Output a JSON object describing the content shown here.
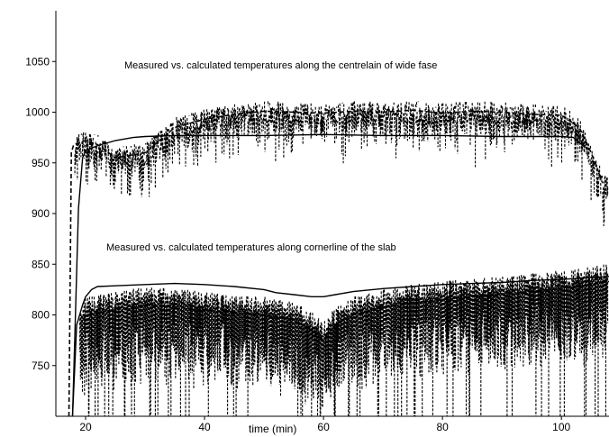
{
  "chart_data": {
    "type": "line",
    "title": "",
    "xlabel": "time (min)",
    "ylabel": "",
    "xlim": [
      15,
      108
    ],
    "ylim": [
      700,
      1100
    ],
    "grid": false,
    "x_ticks": [
      20,
      40,
      60,
      80,
      100
    ],
    "y_ticks": [
      750,
      800,
      850,
      900,
      950,
      1000,
      1050
    ],
    "annotations": [
      "Measured vs. calculated temperatures along the centrelain of wide fase",
      "Measured vs. calculated temperatures along cornerline of the slab"
    ],
    "series": [
      {
        "style": "solid",
        "x": [
          17.8,
          18.2,
          18.8,
          19.5,
          20,
          22,
          25,
          28,
          30,
          35,
          40,
          50,
          60,
          70,
          80,
          90,
          100,
          102,
          103,
          104
        ],
        "y": [
          700,
          780,
          905,
          955,
          962,
          967,
          972,
          975,
          976,
          977,
          977,
          977,
          978,
          977,
          977,
          976,
          976,
          975,
          970,
          966
        ]
      },
      {
        "style": "dashed",
        "x": [
          17.2,
          17.6,
          18,
          19,
          20,
          22,
          25,
          30,
          35,
          40,
          45,
          50,
          55,
          60,
          65,
          70,
          75,
          80,
          85,
          90,
          95,
          100,
          103,
          105,
          107
        ],
        "y": [
          700,
          960,
          968,
          970,
          972,
          968,
          955,
          960,
          985,
          993,
          998,
          1001,
          1000,
          999,
          1001,
          1000,
          1002,
          999,
          1001,
          1000,
          998,
          997,
          985,
          960,
          930
        ]
      },
      {
        "style": "solid",
        "x": [
          17.8,
          18.5,
          19.5,
          20,
          21,
          22,
          30,
          35,
          40,
          45,
          50,
          52,
          55,
          58,
          60,
          62,
          65,
          70,
          75,
          80,
          85,
          90,
          95,
          100,
          105,
          108
        ],
        "y": [
          700,
          790,
          810,
          818,
          825,
          828,
          830,
          831,
          830,
          828,
          825,
          822,
          820,
          818,
          818,
          820,
          823,
          826,
          828,
          830,
          831,
          832,
          834,
          835,
          837,
          838
        ]
      },
      {
        "style": "dashed",
        "x": [
          19,
          20,
          25,
          30,
          35,
          40,
          45,
          50,
          55,
          58,
          60,
          62,
          65,
          70,
          75,
          80,
          85,
          90,
          95,
          100,
          105,
          108
        ],
        "y": [
          790,
          800,
          805,
          810,
          808,
          805,
          802,
          800,
          795,
          785,
          775,
          790,
          800,
          808,
          812,
          815,
          818,
          820,
          823,
          826,
          830,
          833
        ]
      }
    ]
  }
}
